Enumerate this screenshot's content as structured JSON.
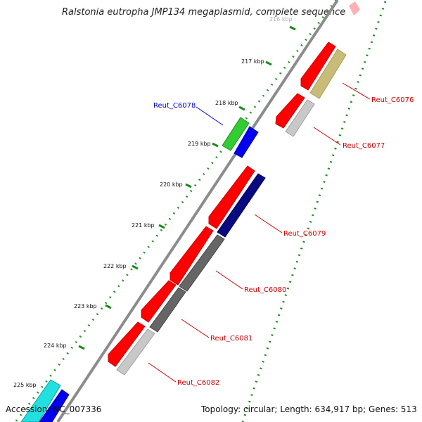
{
  "title": "Ralstonia eutropha JMP134 megaplasmid, complete sequence",
  "footer": {
    "accession": "Accession: NC_007336",
    "summary": "Topology: circular; Length: 634,917 bp; Genes: 513"
  },
  "ticks": [
    "216 kbp",
    "217 kbp",
    "218 kbp",
    "219 kbp",
    "220 kbp",
    "221 kbp",
    "222 kbp",
    "223 kbp",
    "224 kbp",
    "225 kbp"
  ],
  "genes": [
    {
      "name": "Reut_C6076",
      "label_color": "#cc0000"
    },
    {
      "name": "Reut_C6077",
      "label_color": "#cc0000"
    },
    {
      "name": "Reut_C6078",
      "label_color": "#0000cc"
    },
    {
      "name": "Reut_C6079",
      "label_color": "#cc0000"
    },
    {
      "name": "Reut_C6080",
      "label_color": "#cc0000"
    },
    {
      "name": "Reut_C6081",
      "label_color": "#cc0000"
    },
    {
      "name": "Reut_C6082",
      "label_color": "#cc0000"
    }
  ],
  "colors": {
    "backbone": "#8c8c8c",
    "tick_dots": "#1a8a1a",
    "cds_red": "#ff0000",
    "cds_olive": "#c8bc78",
    "cds_gray_light": "#c8c8c8",
    "cds_gray_dark": "#666666",
    "cds_navy": "#0a0a80",
    "cds_green": "#33cc33",
    "cds_blue": "#0000ee",
    "cds_cyan": "#22e0e0",
    "cds_pink": "#ffb0b0"
  }
}
